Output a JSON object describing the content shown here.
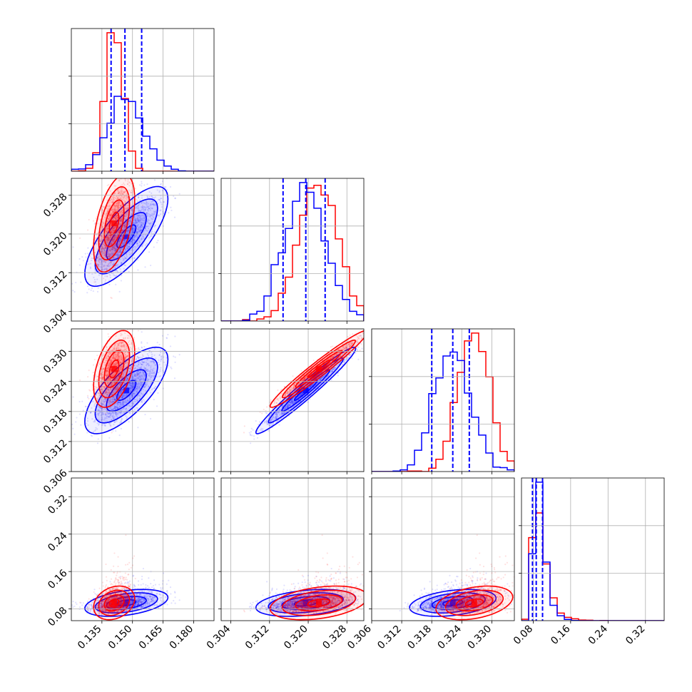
{
  "chart_data": {
    "type": "corner",
    "grid": true,
    "params": [
      {
        "lim": [
          0.12,
          0.19
        ],
        "ticks": [
          0.135,
          0.15,
          0.165,
          0.18
        ],
        "tick_labels": [
          "0.135",
          "0.150",
          "0.165",
          "0.180"
        ]
      },
      {
        "lim": [
          0.302,
          0.3315
        ],
        "ticks": [
          0.304,
          0.312,
          0.32,
          0.328
        ],
        "tick_labels": [
          "0.304",
          "0.312",
          "0.320",
          "0.328"
        ]
      },
      {
        "lim": [
          0.306,
          0.3345
        ],
        "ticks": [
          0.306,
          0.312,
          0.318,
          0.324,
          0.33
        ],
        "tick_labels": [
          "0.306",
          "0.312",
          "0.318",
          "0.324",
          "0.330"
        ]
      },
      {
        "lim": [
          0.055,
          0.36
        ],
        "ticks": [
          0.08,
          0.16,
          0.24,
          0.32
        ],
        "tick_labels": [
          "0.08",
          "0.16",
          "0.24",
          "0.32"
        ]
      }
    ],
    "series": [
      {
        "color": "#ff0000",
        "mean": [
          0.141,
          0.3222,
          0.3265,
          0.093
        ],
        "sd": [
          0.0042,
          0.0042,
          0.0032,
          0.015
        ],
        "corr": [
          [
            1,
            0.5,
            0.45,
            0.25
          ],
          [
            0.5,
            1,
            0.97,
            0.35
          ],
          [
            0.45,
            0.97,
            1,
            0.35
          ],
          [
            0.25,
            0.35,
            0.35,
            1
          ]
        ]
      },
      {
        "color": "#0000ff",
        "mean": [
          0.147,
          0.3195,
          0.3222,
          0.093
        ],
        "sd": [
          0.0085,
          0.0043,
          0.0036,
          0.012
        ],
        "corr": [
          [
            1,
            0.75,
            0.72,
            0.4
          ],
          [
            0.75,
            1,
            0.97,
            0.35
          ],
          [
            0.72,
            0.97,
            1,
            0.35
          ],
          [
            0.4,
            0.35,
            0.35,
            1
          ]
        ]
      }
    ],
    "quantile_lines": [
      {
        "color": "#0000ff",
        "values": [
          0.1395,
          0.1463,
          0.1545
        ]
      },
      {
        "color": "#0000ff",
        "values": [
          0.3148,
          0.3195,
          0.3235
        ]
      },
      {
        "color": "#0000ff",
        "values": [
          0.318,
          0.3222,
          0.3255
        ]
      },
      {
        "color": "#0000ff",
        "values": [
          0.0785,
          0.0865,
          0.1
        ]
      }
    ]
  }
}
